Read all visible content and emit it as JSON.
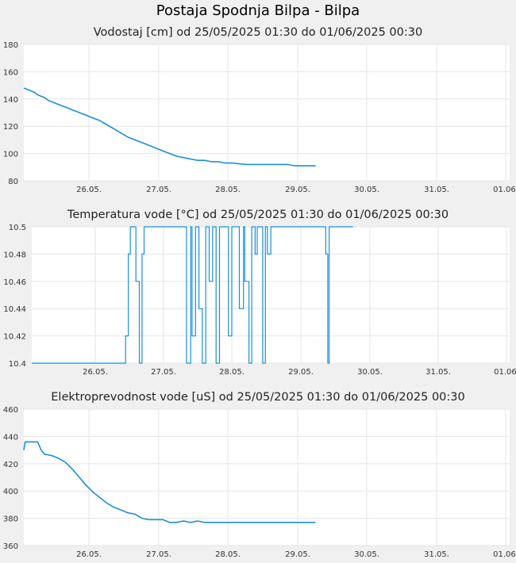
{
  "title": "Postaja Spodnja Bilpa - Bilpa",
  "colors": {
    "line": "#1a8fdc",
    "background": "#f0f0f0",
    "plot_bg": "#ffffff",
    "grid": "#e6e6e6"
  },
  "chart_data": [
    {
      "type": "line",
      "title": "Vodostaj [cm] od 25/05/2025 01:30 do 01/06/2025 00:30",
      "xlabel": "",
      "ylabel": "",
      "x_range": [
        "25.05. 01:30",
        "01.06. 00:30"
      ],
      "ylim": [
        80,
        180
      ],
      "yticks": [
        "80",
        "100",
        "120",
        "140",
        "160",
        "180"
      ],
      "xticks": [
        "26.05.",
        "27.05.",
        "28.05.",
        "29.05.",
        "30.05.",
        "31.05.",
        "01.06."
      ],
      "grid": true,
      "step": false,
      "series": [
        {
          "x": [
            0,
            0.05,
            0.1,
            0.15,
            0.2,
            0.25,
            0.3,
            0.35,
            0.4,
            0.45,
            0.5,
            0.55,
            0.6,
            0.65,
            0.7,
            0.75,
            0.8,
            0.85,
            0.9,
            0.95,
            1.0,
            1.1,
            1.2,
            1.3,
            1.4,
            1.5,
            1.6,
            1.7,
            1.8,
            1.9,
            2.0,
            2.1,
            2.2,
            2.3,
            2.4,
            2.5,
            2.6,
            2.7,
            2.8,
            2.9,
            3.0,
            3.2,
            3.4,
            3.6,
            3.8,
            3.9,
            4.0,
            4.1,
            4.2
          ],
          "y": [
            148,
            147,
            146,
            145,
            143,
            142,
            141,
            139,
            138,
            137,
            136,
            135,
            134,
            133,
            132,
            131,
            130,
            129,
            128,
            127,
            126,
            124,
            121,
            118,
            115,
            112,
            110,
            108,
            106,
            104,
            102,
            100,
            98,
            97,
            96,
            95,
            95,
            94,
            94,
            93,
            93,
            92,
            92,
            92,
            92,
            91,
            91,
            91,
            91
          ]
        }
      ]
    },
    {
      "type": "line",
      "title": "Temperatura vode [°C] od 25/05/2025 01:30 do 01/06/2025 00:30",
      "xlabel": "",
      "ylabel": "",
      "x_range": [
        "25.05. 01:30",
        "01.06. 00:30"
      ],
      "ylim": [
        10.4,
        10.5
      ],
      "yticks": [
        "10.4",
        "10.42",
        "10.44",
        "10.46",
        "10.48",
        "10.5"
      ],
      "xticks": [
        "26.05.",
        "27.05.",
        "28.05.",
        "29.05.",
        "30.05.",
        "31.05.",
        "01.06."
      ],
      "grid": true,
      "step": true,
      "series": [
        {
          "x": [
            0,
            1.36,
            1.38,
            1.42,
            1.45,
            1.5,
            1.53,
            1.58,
            1.62,
            1.65,
            2.25,
            2.27,
            2.33,
            2.35,
            2.4,
            2.45,
            2.5,
            2.55,
            2.6,
            2.65,
            2.7,
            2.75,
            2.8,
            2.88,
            2.93,
            3.02,
            3.04,
            3.1,
            3.12,
            3.18,
            3.22,
            3.27,
            3.3,
            3.35,
            3.38,
            3.42,
            3.45,
            3.5,
            3.55,
            4.28,
            4.3,
            4.33,
            4.35,
            4.4,
            4.7
          ],
          "y": [
            10.4,
            10.4,
            10.42,
            10.48,
            10.5,
            10.5,
            10.46,
            10.4,
            10.48,
            10.5,
            10.5,
            10.4,
            10.5,
            10.42,
            10.5,
            10.44,
            10.4,
            10.5,
            10.46,
            10.5,
            10.4,
            10.5,
            10.5,
            10.42,
            10.5,
            10.5,
            10.44,
            10.5,
            10.46,
            10.4,
            10.5,
            10.48,
            10.5,
            10.5,
            10.4,
            10.5,
            10.48,
            10.5,
            10.5,
            10.5,
            10.48,
            10.4,
            10.5,
            10.5,
            10.5
          ]
        }
      ]
    },
    {
      "type": "line",
      "title": "Elektroprevodnost vode [uS] od 25/05/2025 01:30 do 01/06/2025 00:30",
      "xlabel": "",
      "ylabel": "",
      "x_range": [
        "25.05. 01:30",
        "01.06. 00:30"
      ],
      "ylim": [
        360,
        460
      ],
      "yticks": [
        "360",
        "380",
        "400",
        "420",
        "440",
        "460"
      ],
      "xticks": [
        "26.05.",
        "27.05.",
        "28.05.",
        "29.05.",
        "30.05.",
        "31.05.",
        "01.06."
      ],
      "grid": true,
      "step": false,
      "series": [
        {
          "x": [
            0,
            0.02,
            0.05,
            0.1,
            0.2,
            0.25,
            0.3,
            0.4,
            0.5,
            0.6,
            0.7,
            0.8,
            0.9,
            1.0,
            1.1,
            1.2,
            1.3,
            1.4,
            1.5,
            1.6,
            1.7,
            1.8,
            1.9,
            2.0,
            2.1,
            2.2,
            2.3,
            2.4,
            2.5,
            2.6,
            2.8,
            3.0,
            3.2,
            3.4,
            3.6,
            3.8,
            4.0,
            4.2
          ],
          "y": [
            430,
            436,
            436,
            436,
            436,
            430,
            427,
            426,
            424,
            421,
            416,
            410,
            404,
            399,
            395,
            391,
            388,
            386,
            384,
            383,
            380,
            379,
            379,
            379,
            377,
            377,
            378,
            377,
            378,
            377,
            377,
            377,
            377,
            377,
            377,
            377,
            377,
            377
          ]
        }
      ]
    }
  ]
}
